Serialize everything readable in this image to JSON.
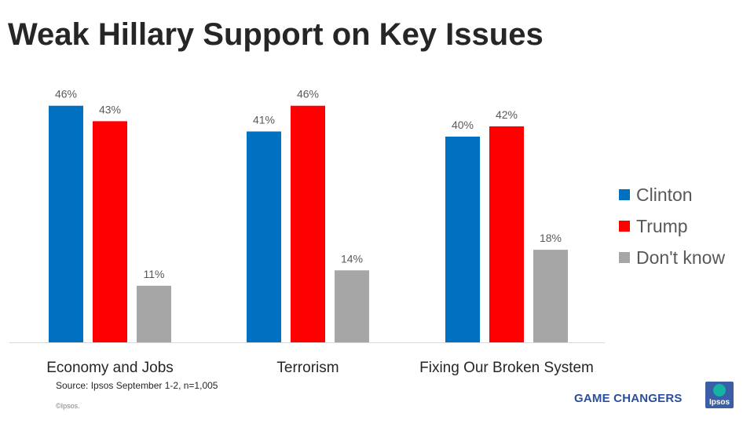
{
  "title": "Weak Hillary Support on Key Issues",
  "source": "Source: Ipsos September 1-2, n=1,005",
  "copyright": "©Ipsos.",
  "tagline": "GAME CHANGERS",
  "logo_text": "Ipsos",
  "chart_data": {
    "type": "bar",
    "title": "Weak Hillary Support on Key Issues",
    "categories": [
      "Economy and Jobs",
      "Terrorism",
      "Fixing Our Broken System"
    ],
    "series": [
      {
        "name": "Clinton",
        "color": "#0070c0",
        "values": [
          46,
          41,
          40
        ]
      },
      {
        "name": "Trump",
        "color": "#ff0000",
        "values": [
          43,
          46,
          42
        ]
      },
      {
        "name": "Don't know",
        "color": "#a6a6a6",
        "values": [
          11,
          14,
          18
        ]
      }
    ],
    "value_suffix": "%",
    "xlabel": "",
    "ylabel": "",
    "ylim": [
      0,
      50
    ],
    "grid": false,
    "legend": "right"
  }
}
